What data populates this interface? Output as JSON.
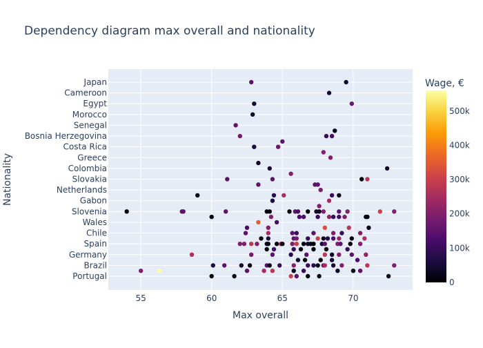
{
  "chart_data": {
    "type": "scatter",
    "title": "Dependency diagram max overall and nationality",
    "xlabel": "Max overall",
    "ylabel": "Nationality",
    "xlim": [
      52.7,
      74.2
    ],
    "x_ticks": [
      55,
      60,
      65,
      70
    ],
    "categories": [
      "Portugal",
      "Brazil",
      "Germany",
      "Spain",
      "Chile",
      "Wales",
      "Slovenia",
      "Gabon",
      "Netherlands",
      "Slovakia",
      "Colombia",
      "Greece",
      "Costa Rica",
      "Bosnia Herzegovina",
      "Senegal",
      "Morocco",
      "Egypt",
      "Cameroon",
      "Japan"
    ],
    "y_tick_labels": [
      "Portugal",
      "Brazil",
      "Germany",
      "Spain",
      "Chile",
      "Wales",
      "Slovenia",
      "Gabon",
      "Netherlands",
      "Slovakia",
      "Colombia",
      "Greece",
      "Costa Rica",
      "Bosnia Herzegovina",
      "Senegal",
      "Morocco",
      "Egypt",
      "Cameroon",
      "Japan"
    ],
    "grid": true,
    "colorbar": {
      "title": "Wage, €",
      "range": [
        0,
        560000
      ],
      "ticks": [
        0,
        100000,
        200000,
        300000,
        400000,
        500000
      ],
      "tick_labels": [
        "0",
        "100k",
        "200k",
        "300k",
        "400k",
        "500k"
      ],
      "colorscale": "inferno"
    },
    "points": [
      {
        "x": 60.0,
        "y": 0,
        "wage": 5000
      },
      {
        "x": 61.6,
        "y": 0,
        "wage": 20000
      },
      {
        "x": 65.6,
        "y": 0,
        "wage": 300000
      },
      {
        "x": 66.0,
        "y": 0,
        "wage": 150000
      },
      {
        "x": 66.8,
        "y": 0,
        "wage": 10000
      },
      {
        "x": 67.6,
        "y": 0,
        "wage": 15000
      },
      {
        "x": 72.5,
        "y": 0,
        "wage": 20000
      },
      {
        "x": 55.0,
        "y": 0.5,
        "wage": 200000
      },
      {
        "x": 56.3,
        "y": 0.5,
        "wage": 560000
      },
      {
        "x": 62.5,
        "y": 0.5,
        "wage": 150000
      },
      {
        "x": 63.7,
        "y": 0.5,
        "wage": 250000
      },
      {
        "x": 64.3,
        "y": 0.5,
        "wage": 280000
      },
      {
        "x": 65.8,
        "y": 0.5,
        "wage": 20000
      },
      {
        "x": 66.5,
        "y": 0.5,
        "wage": 100000
      },
      {
        "x": 68.9,
        "y": 0.5,
        "wage": 30000
      },
      {
        "x": 70.0,
        "y": 0.5,
        "wage": 10000
      },
      {
        "x": 70.5,
        "y": 0.5,
        "wage": 150000
      },
      {
        "x": 60.1,
        "y": 1,
        "wage": 60000
      },
      {
        "x": 60.9,
        "y": 1,
        "wage": 150000
      },
      {
        "x": 62.1,
        "y": 1,
        "wage": 30000
      },
      {
        "x": 62.7,
        "y": 1,
        "wage": 10000
      },
      {
        "x": 63.9,
        "y": 1,
        "wage": 150000
      },
      {
        "x": 64.1,
        "y": 1,
        "wage": 5000
      },
      {
        "x": 64.8,
        "y": 1,
        "wage": 100000
      },
      {
        "x": 65.8,
        "y": 1,
        "wage": 200000
      },
      {
        "x": 66.8,
        "y": 1,
        "wage": 100000
      },
      {
        "x": 67.2,
        "y": 1,
        "wage": 80000
      },
      {
        "x": 67.5,
        "y": 1,
        "wage": 5000
      },
      {
        "x": 67.9,
        "y": 1,
        "wage": 150000
      },
      {
        "x": 68.0,
        "y": 1,
        "wage": 250000
      },
      {
        "x": 68.6,
        "y": 1,
        "wage": 50000
      },
      {
        "x": 69.2,
        "y": 1,
        "wage": 200000
      },
      {
        "x": 71.0,
        "y": 1,
        "wage": 280000
      },
      {
        "x": 72.9,
        "y": 1,
        "wage": 200000
      },
      {
        "x": 66.1,
        "y": 1.5,
        "wage": 40000
      },
      {
        "x": 66.6,
        "y": 1.5,
        "wage": 10000
      },
      {
        "x": 67.7,
        "y": 1.5,
        "wage": 5000
      },
      {
        "x": 68.5,
        "y": 1.5,
        "wage": 50000
      },
      {
        "x": 70.3,
        "y": 1.5,
        "wage": 120000
      },
      {
        "x": 58.6,
        "y": 2,
        "wage": 260000
      },
      {
        "x": 62.8,
        "y": 2,
        "wage": 180000
      },
      {
        "x": 64.3,
        "y": 2,
        "wage": 150000
      },
      {
        "x": 65.6,
        "y": 2,
        "wage": 80000
      },
      {
        "x": 66.7,
        "y": 2,
        "wage": 150000
      },
      {
        "x": 68.0,
        "y": 2,
        "wage": 280000
      },
      {
        "x": 68.5,
        "y": 2,
        "wage": 30000
      },
      {
        "x": 69.0,
        "y": 2,
        "wage": 200000
      },
      {
        "x": 69.9,
        "y": 2,
        "wage": 150000
      },
      {
        "x": 70.9,
        "y": 2,
        "wage": 220000
      },
      {
        "x": 63.9,
        "y": 2.5,
        "wage": 5000
      },
      {
        "x": 64.4,
        "y": 2.5,
        "wage": 120000
      },
      {
        "x": 65.8,
        "y": 2.5,
        "wage": 100000
      },
      {
        "x": 66.3,
        "y": 2.5,
        "wage": 10000
      },
      {
        "x": 67.2,
        "y": 2.5,
        "wage": 5000
      },
      {
        "x": 68.1,
        "y": 2.5,
        "wage": 5000
      },
      {
        "x": 69.6,
        "y": 2.5,
        "wage": 100000
      },
      {
        "x": 62.0,
        "y": 3,
        "wage": 200000
      },
      {
        "x": 62.3,
        "y": 3,
        "wage": 200000
      },
      {
        "x": 62.8,
        "y": 3,
        "wage": 280000
      },
      {
        "x": 63.2,
        "y": 3,
        "wage": 200000
      },
      {
        "x": 63.9,
        "y": 3,
        "wage": 30000
      },
      {
        "x": 64.0,
        "y": 3,
        "wage": 10000
      },
      {
        "x": 64.6,
        "y": 3,
        "wage": 5000
      },
      {
        "x": 64.9,
        "y": 3,
        "wage": 250000
      },
      {
        "x": 65.0,
        "y": 3,
        "wage": 5000
      },
      {
        "x": 65.7,
        "y": 3,
        "wage": 200000
      },
      {
        "x": 66.0,
        "y": 3,
        "wage": 300000
      },
      {
        "x": 66.5,
        "y": 3,
        "wage": 15000
      },
      {
        "x": 66.8,
        "y": 3,
        "wage": 40000
      },
      {
        "x": 67.0,
        "y": 3,
        "wage": 30000
      },
      {
        "x": 67.2,
        "y": 3,
        "wage": 5000
      },
      {
        "x": 67.8,
        "y": 3,
        "wage": 50000
      },
      {
        "x": 68.0,
        "y": 3,
        "wage": 150000
      },
      {
        "x": 68.9,
        "y": 3,
        "wage": 200000
      },
      {
        "x": 69.1,
        "y": 3,
        "wage": 150000
      },
      {
        "x": 69.8,
        "y": 3,
        "wage": 5000
      },
      {
        "x": 70.5,
        "y": 3,
        "wage": 200000
      },
      {
        "x": 63.5,
        "y": 3.5,
        "wage": 5000
      },
      {
        "x": 64.0,
        "y": 3.5,
        "wage": 60000
      },
      {
        "x": 65.8,
        "y": 3.5,
        "wage": 150000
      },
      {
        "x": 66.0,
        "y": 3.5,
        "wage": 180000
      },
      {
        "x": 66.8,
        "y": 3.5,
        "wage": 100000
      },
      {
        "x": 67.5,
        "y": 3.5,
        "wage": 300000
      },
      {
        "x": 67.9,
        "y": 3.5,
        "wage": 20000
      },
      {
        "x": 68.2,
        "y": 3.5,
        "wage": 80000
      },
      {
        "x": 68.6,
        "y": 3.5,
        "wage": 130000
      },
      {
        "x": 69.0,
        "y": 3.5,
        "wage": 230000
      },
      {
        "x": 69.9,
        "y": 3.5,
        "wage": 5000
      },
      {
        "x": 70.8,
        "y": 3.5,
        "wage": 260000
      },
      {
        "x": 62.4,
        "y": 4,
        "wage": 150000
      },
      {
        "x": 64.0,
        "y": 4,
        "wage": 250000
      },
      {
        "x": 65.7,
        "y": 4,
        "wage": 150000
      },
      {
        "x": 66.0,
        "y": 4,
        "wage": 100000
      },
      {
        "x": 67.2,
        "y": 4,
        "wage": 150000
      },
      {
        "x": 68.6,
        "y": 4,
        "wage": 200000
      },
      {
        "x": 69.2,
        "y": 4,
        "wage": 100000
      },
      {
        "x": 70.5,
        "y": 4,
        "wage": 200000
      },
      {
        "x": 62.5,
        "y": 4.5,
        "wage": 120000
      },
      {
        "x": 64.0,
        "y": 4.5,
        "wage": 200000
      },
      {
        "x": 68.0,
        "y": 4.5,
        "wage": 330000
      },
      {
        "x": 69.7,
        "y": 4.5,
        "wage": 280000
      },
      {
        "x": 71.1,
        "y": 4.5,
        "wage": 10000
      },
      {
        "x": 63.3,
        "y": 5,
        "wage": 350000
      },
      {
        "x": 64.6,
        "y": 5,
        "wage": 120000
      },
      {
        "x": 60.0,
        "y": 5.5,
        "wage": 5000
      },
      {
        "x": 64.2,
        "y": 5.5,
        "wage": 200000
      },
      {
        "x": 66.2,
        "y": 5.5,
        "wage": 130000
      },
      {
        "x": 66.5,
        "y": 5.5,
        "wage": 130000
      },
      {
        "x": 67.5,
        "y": 5.5,
        "wage": 100000
      },
      {
        "x": 68.3,
        "y": 5.5,
        "wage": 220000
      },
      {
        "x": 68.6,
        "y": 5.5,
        "wage": 100000
      },
      {
        "x": 69.0,
        "y": 5.5,
        "wage": 120000
      },
      {
        "x": 69.4,
        "y": 5.5,
        "wage": 200000
      },
      {
        "x": 70.9,
        "y": 5.5,
        "wage": 5000
      },
      {
        "x": 71.0,
        "y": 5.5,
        "wage": 10000
      },
      {
        "x": 54.0,
        "y": 6,
        "wage": 5000
      },
      {
        "x": 57.9,
        "y": 6,
        "wage": 150000
      },
      {
        "x": 58.0,
        "y": 6,
        "wage": 150000
      },
      {
        "x": 61.0,
        "y": 6,
        "wage": 150000
      },
      {
        "x": 63.9,
        "y": 6,
        "wage": 10000
      },
      {
        "x": 64.1,
        "y": 6,
        "wage": 5000
      },
      {
        "x": 65.5,
        "y": 6,
        "wage": 5000
      },
      {
        "x": 65.9,
        "y": 6,
        "wage": 150000
      },
      {
        "x": 66.1,
        "y": 6,
        "wage": 130000
      },
      {
        "x": 66.8,
        "y": 6,
        "wage": 5000
      },
      {
        "x": 67.4,
        "y": 6,
        "wage": 40000
      },
      {
        "x": 67.6,
        "y": 6,
        "wage": 20000
      },
      {
        "x": 67.9,
        "y": 6,
        "wage": 200000
      },
      {
        "x": 69.0,
        "y": 6,
        "wage": 150000
      },
      {
        "x": 69.6,
        "y": 6,
        "wage": 200000
      },
      {
        "x": 71.9,
        "y": 6,
        "wage": 300000
      },
      {
        "x": 72.9,
        "y": 6,
        "wage": 200000
      },
      {
        "x": 67.6,
        "y": 6.5,
        "wage": 200000
      },
      {
        "x": 64.3,
        "y": 7,
        "wage": 60000
      },
      {
        "x": 68.3,
        "y": 7,
        "wage": 250000
      },
      {
        "x": 59.0,
        "y": 7.5,
        "wage": 10000
      },
      {
        "x": 64.4,
        "y": 7.5,
        "wage": 80000
      },
      {
        "x": 65.1,
        "y": 7.5,
        "wage": 250000
      },
      {
        "x": 68.5,
        "y": 7.5,
        "wage": 100000
      },
      {
        "x": 69.0,
        "y": 7.5,
        "wage": 20000
      },
      {
        "x": 67.7,
        "y": 8,
        "wage": 200000
      },
      {
        "x": 63.3,
        "y": 8.5,
        "wage": 150000
      },
      {
        "x": 67.3,
        "y": 8.5,
        "wage": 150000
      },
      {
        "x": 67.5,
        "y": 8.5,
        "wage": 150000
      },
      {
        "x": 61.1,
        "y": 9,
        "wage": 150000
      },
      {
        "x": 64.3,
        "y": 9,
        "wage": 150000
      },
      {
        "x": 70.6,
        "y": 9,
        "wage": 5000
      },
      {
        "x": 71.0,
        "y": 9,
        "wage": 280000
      },
      {
        "x": 65.6,
        "y": 9.5,
        "wage": 200000
      },
      {
        "x": 64.1,
        "y": 10,
        "wage": 60000
      },
      {
        "x": 72.4,
        "y": 10,
        "wage": 50000
      },
      {
        "x": 63.3,
        "y": 10.5,
        "wage": 30000
      },
      {
        "x": 68.4,
        "y": 11,
        "wage": 200000
      },
      {
        "x": 67.9,
        "y": 11.5,
        "wage": 200000
      },
      {
        "x": 63.0,
        "y": 12,
        "wage": 60000
      },
      {
        "x": 64.7,
        "y": 12,
        "wage": 170000
      },
      {
        "x": 65.0,
        "y": 12.5,
        "wage": 150000
      },
      {
        "x": 62.0,
        "y": 13,
        "wage": 180000
      },
      {
        "x": 68.1,
        "y": 13,
        "wage": 100000
      },
      {
        "x": 68.5,
        "y": 13,
        "wage": 120000
      },
      {
        "x": 68.7,
        "y": 13.5,
        "wage": 20000
      },
      {
        "x": 61.7,
        "y": 14,
        "wage": 150000
      },
      {
        "x": 62.9,
        "y": 15,
        "wage": 40000
      },
      {
        "x": 63.0,
        "y": 16,
        "wage": 50000
      },
      {
        "x": 69.9,
        "y": 16,
        "wage": 170000
      },
      {
        "x": 68.3,
        "y": 17,
        "wage": 50000
      },
      {
        "x": 62.8,
        "y": 18,
        "wage": 150000
      },
      {
        "x": 69.5,
        "y": 18,
        "wage": 40000
      }
    ]
  }
}
